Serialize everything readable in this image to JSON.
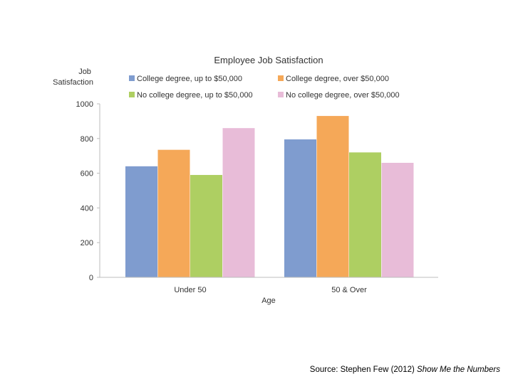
{
  "chart_data": {
    "type": "bar",
    "title": "Employee Job Satisfaction",
    "ylabel": "Job Satisfaction",
    "xlabel": "Age",
    "ylim": [
      0,
      1000
    ],
    "yticks": [
      0,
      200,
      400,
      600,
      800,
      1000
    ],
    "categories": [
      "Under 50",
      "50 & Over"
    ],
    "series": [
      {
        "name": "College degree, up to $50,000",
        "color": "#7f9ccf",
        "values": [
          640,
          795
        ]
      },
      {
        "name": "College degree, over $50,000",
        "color": "#f5a858",
        "values": [
          735,
          930
        ]
      },
      {
        "name": "No college degree, up to $50,000",
        "color": "#aecf62",
        "values": [
          590,
          720
        ]
      },
      {
        "name": "No college degree, over $50,000",
        "color": "#e8bcd8",
        "values": [
          860,
          660
        ]
      }
    ],
    "legend": "top",
    "grid": false
  },
  "source": {
    "prefix": "Source: Stephen Few (2012) ",
    "book": "Show Me the Numbers"
  }
}
